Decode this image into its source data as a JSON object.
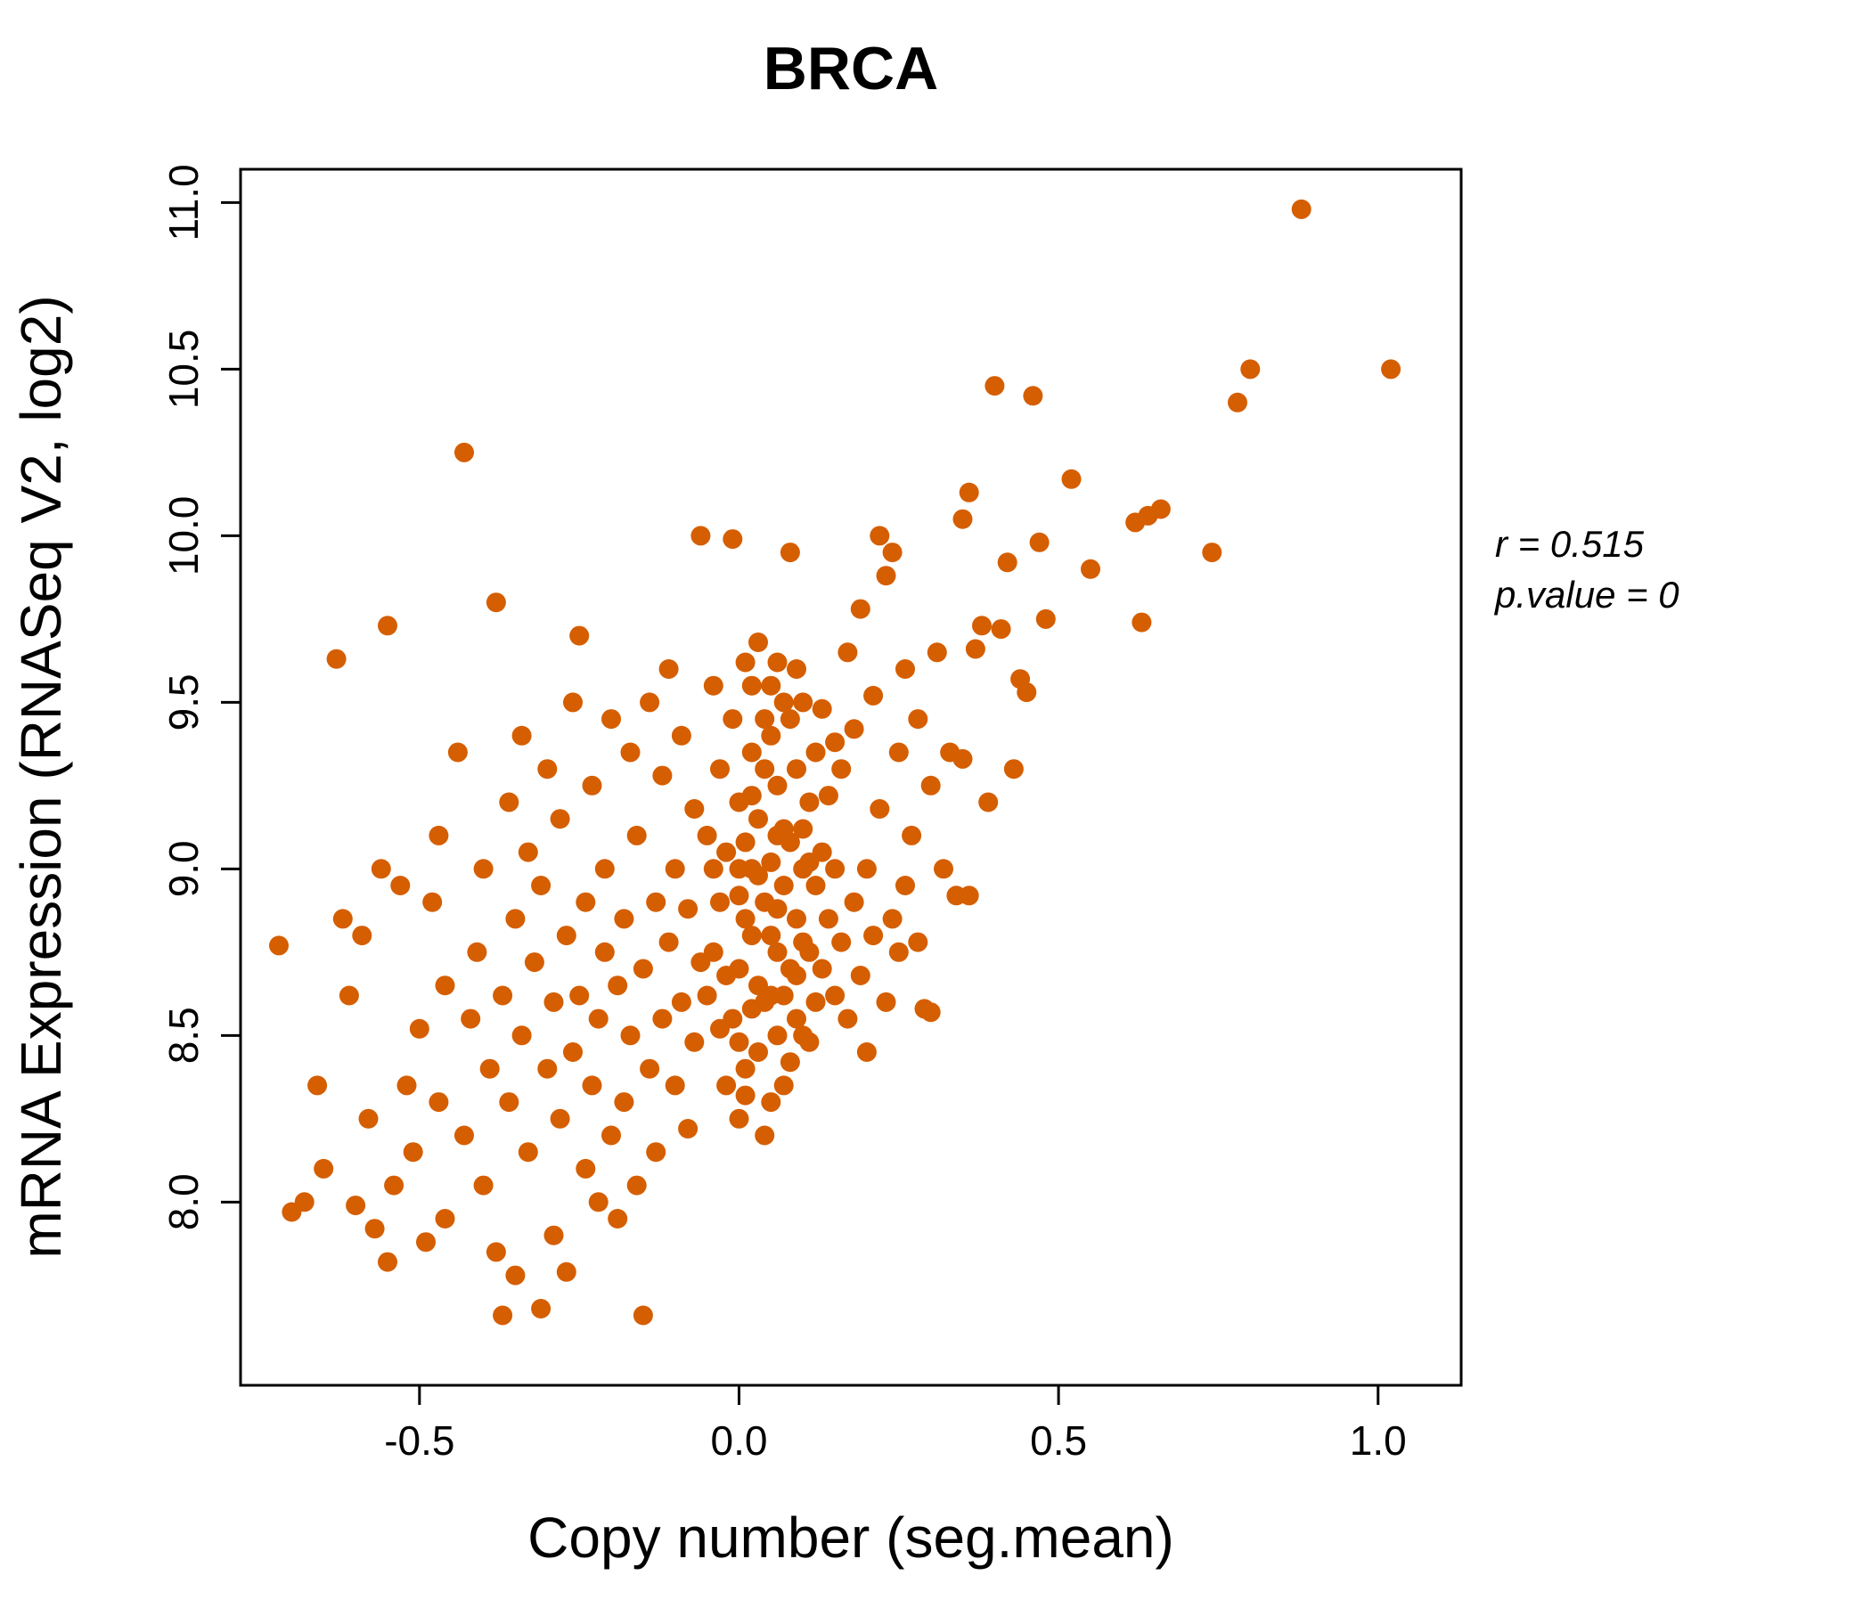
{
  "chart_data": {
    "type": "scatter",
    "title": "BRCA",
    "xlabel": "Copy number (seg.mean)",
    "ylabel": "mRNA Expression (RNASeq V2, log2)",
    "annotations": [
      "r = 0.515",
      "p.value = 0"
    ],
    "title_color": "#E06A00",
    "point_color": "#D55E00",
    "xlim": [
      -0.78,
      1.13
    ],
    "ylim": [
      7.45,
      11.1
    ],
    "x_ticks": {
      "values": [
        -0.5,
        0.0,
        0.5,
        1.0
      ],
      "labels": [
        "-0.5",
        "0.0",
        "0.5",
        "1.0"
      ]
    },
    "y_ticks": {
      "values": [
        8.0,
        8.5,
        9.0,
        9.5,
        10.0,
        10.5,
        11.0
      ],
      "labels": [
        "8.0",
        "8.5",
        "9.0",
        "9.5",
        "10.0",
        "10.5",
        "11.0"
      ]
    },
    "grid": false,
    "points": [
      [
        -0.72,
        8.77
      ],
      [
        -0.7,
        7.97
      ],
      [
        -0.68,
        8.0
      ],
      [
        -0.66,
        8.35
      ],
      [
        -0.65,
        8.1
      ],
      [
        -0.63,
        9.63
      ],
      [
        -0.62,
        8.85
      ],
      [
        -0.61,
        8.62
      ],
      [
        -0.6,
        7.99
      ],
      [
        -0.59,
        8.8
      ],
      [
        -0.58,
        8.25
      ],
      [
        -0.57,
        7.92
      ],
      [
        -0.56,
        9.0
      ],
      [
        -0.55,
        9.73
      ],
      [
        -0.55,
        7.82
      ],
      [
        -0.54,
        8.05
      ],
      [
        -0.53,
        8.95
      ],
      [
        -0.52,
        8.35
      ],
      [
        -0.51,
        8.15
      ],
      [
        -0.5,
        8.52
      ],
      [
        -0.49,
        7.88
      ],
      [
        -0.48,
        8.9
      ],
      [
        -0.47,
        9.1
      ],
      [
        -0.47,
        8.3
      ],
      [
        -0.46,
        8.65
      ],
      [
        -0.46,
        7.95
      ],
      [
        -0.44,
        9.35
      ],
      [
        -0.43,
        10.25
      ],
      [
        -0.43,
        8.2
      ],
      [
        -0.42,
        8.55
      ],
      [
        -0.41,
        8.75
      ],
      [
        -0.4,
        9.0
      ],
      [
        -0.4,
        8.05
      ],
      [
        -0.39,
        8.4
      ],
      [
        -0.38,
        9.8
      ],
      [
        -0.38,
        7.85
      ],
      [
        -0.37,
        7.66
      ],
      [
        -0.37,
        8.62
      ],
      [
        -0.36,
        9.2
      ],
      [
        -0.36,
        8.3
      ],
      [
        -0.35,
        8.85
      ],
      [
        -0.35,
        7.78
      ],
      [
        -0.34,
        9.4
      ],
      [
        -0.34,
        8.5
      ],
      [
        -0.33,
        8.15
      ],
      [
        -0.33,
        9.05
      ],
      [
        -0.32,
        8.72
      ],
      [
        -0.31,
        7.68
      ],
      [
        -0.31,
        8.95
      ],
      [
        -0.3,
        9.3
      ],
      [
        -0.3,
        8.4
      ],
      [
        -0.29,
        8.6
      ],
      [
        -0.29,
        7.9
      ],
      [
        -0.28,
        9.15
      ],
      [
        -0.28,
        8.25
      ],
      [
        -0.27,
        8.8
      ],
      [
        -0.27,
        7.79
      ],
      [
        -0.26,
        9.5
      ],
      [
        -0.26,
        8.45
      ],
      [
        -0.25,
        9.7
      ],
      [
        -0.25,
        8.62
      ],
      [
        -0.24,
        8.1
      ],
      [
        -0.24,
        8.9
      ],
      [
        -0.23,
        8.35
      ],
      [
        -0.23,
        9.25
      ],
      [
        -0.22,
        8.55
      ],
      [
        -0.22,
        8.0
      ],
      [
        -0.21,
        8.75
      ],
      [
        -0.21,
        9.0
      ],
      [
        -0.2,
        8.2
      ],
      [
        -0.2,
        9.45
      ],
      [
        -0.19,
        8.65
      ],
      [
        -0.19,
        7.95
      ],
      [
        -0.18,
        8.85
      ],
      [
        -0.18,
        8.3
      ],
      [
        -0.17,
        9.35
      ],
      [
        -0.17,
        8.5
      ],
      [
        -0.16,
        8.05
      ],
      [
        -0.16,
        9.1
      ],
      [
        -0.15,
        7.66
      ],
      [
        -0.15,
        8.7
      ],
      [
        -0.14,
        8.4
      ],
      [
        -0.14,
        9.5
      ],
      [
        -0.13,
        8.9
      ],
      [
        -0.13,
        8.15
      ],
      [
        -0.12,
        9.28
      ],
      [
        -0.12,
        8.55
      ],
      [
        -0.11,
        8.78
      ],
      [
        -0.11,
        9.6
      ],
      [
        -0.1,
        8.35
      ],
      [
        -0.1,
        9.0
      ],
      [
        -0.09,
        8.6
      ],
      [
        -0.09,
        9.4
      ],
      [
        -0.08,
        8.22
      ],
      [
        -0.08,
        8.88
      ],
      [
        -0.07,
        9.18
      ],
      [
        -0.07,
        8.48
      ],
      [
        -0.06,
        10.0
      ],
      [
        -0.06,
        8.72
      ],
      [
        -0.05,
        8.62
      ],
      [
        -0.05,
        9.1
      ],
      [
        -0.04,
        8.75
      ],
      [
        -0.04,
        9.55
      ],
      [
        -0.03,
        8.9
      ],
      [
        -0.03,
        9.3
      ],
      [
        -0.02,
        8.35
      ],
      [
        -0.02,
        9.05
      ],
      [
        -0.01,
        8.55
      ],
      [
        -0.01,
        9.45
      ],
      [
        -0.01,
        9.99
      ],
      [
        0.0,
        8.7
      ],
      [
        0.0,
        9.2
      ],
      [
        0.0,
        8.25
      ],
      [
        0.0,
        9.0
      ],
      [
        0.01,
        8.85
      ],
      [
        0.01,
        8.4
      ],
      [
        0.01,
        9.62
      ],
      [
        0.02,
        9.0
      ],
      [
        0.02,
        9.35
      ],
      [
        0.02,
        8.8
      ],
      [
        0.02,
        9.55
      ],
      [
        0.03,
        8.45
      ],
      [
        0.03,
        9.15
      ],
      [
        0.03,
        9.68
      ],
      [
        0.03,
        8.65
      ],
      [
        0.04,
        8.6
      ],
      [
        0.04,
        9.3
      ],
      [
        0.04,
        8.9
      ],
      [
        0.04,
        8.2
      ],
      [
        0.05,
        8.8
      ],
      [
        0.05,
        9.4
      ],
      [
        0.05,
        8.3
      ],
      [
        0.05,
        9.55
      ],
      [
        0.06,
        9.1
      ],
      [
        0.06,
        8.5
      ],
      [
        0.06,
        9.25
      ],
      [
        0.06,
        8.75
      ],
      [
        0.07,
        8.95
      ],
      [
        0.07,
        9.5
      ],
      [
        0.07,
        8.35
      ],
      [
        0.07,
        8.62
      ],
      [
        0.08,
        8.7
      ],
      [
        0.08,
        9.45
      ],
      [
        0.08,
        9.95
      ],
      [
        0.08,
        8.42
      ],
      [
        0.09,
        8.85
      ],
      [
        0.09,
        9.3
      ],
      [
        0.09,
        9.6
      ],
      [
        0.09,
        8.55
      ],
      [
        0.1,
        9.0
      ],
      [
        0.1,
        8.5
      ],
      [
        0.1,
        9.5
      ],
      [
        0.1,
        8.78
      ],
      [
        0.11,
        9.2
      ],
      [
        0.11,
        8.75
      ],
      [
        0.11,
        8.48
      ],
      [
        0.12,
        8.6
      ],
      [
        0.12,
        9.35
      ],
      [
        0.12,
        8.95
      ],
      [
        0.13,
        9.05
      ],
      [
        0.13,
        8.7
      ],
      [
        0.13,
        9.48
      ],
      [
        0.14,
        8.85
      ],
      [
        0.14,
        9.22
      ],
      [
        0.15,
        8.62
      ],
      [
        0.15,
        9.38
      ],
      [
        0.15,
        9.0
      ],
      [
        0.0,
        8.48
      ],
      [
        0.01,
        9.08
      ],
      [
        0.02,
        8.58
      ],
      [
        0.03,
        8.98
      ],
      [
        0.04,
        9.45
      ],
      [
        0.05,
        8.62
      ],
      [
        0.06,
        8.88
      ],
      [
        -0.02,
        8.68
      ],
      [
        -0.03,
        8.52
      ],
      [
        -0.04,
        9.0
      ],
      [
        0.05,
        9.02
      ],
      [
        0.07,
        9.12
      ],
      [
        0.08,
        9.08
      ],
      [
        0.09,
        8.68
      ],
      [
        0.1,
        9.12
      ],
      [
        0.11,
        9.02
      ],
      [
        0.0,
        8.92
      ],
      [
        0.01,
        8.32
      ],
      [
        0.02,
        9.22
      ],
      [
        0.06,
        9.62
      ],
      [
        0.16,
        8.78
      ],
      [
        0.16,
        9.3
      ],
      [
        0.17,
        8.55
      ],
      [
        0.17,
        9.65
      ],
      [
        0.18,
        8.9
      ],
      [
        0.18,
        9.42
      ],
      [
        0.19,
        8.68
      ],
      [
        0.19,
        9.78
      ],
      [
        0.2,
        9.0
      ],
      [
        0.2,
        8.45
      ],
      [
        0.21,
        9.52
      ],
      [
        0.21,
        8.8
      ],
      [
        0.22,
        10.0
      ],
      [
        0.22,
        9.18
      ],
      [
        0.23,
        8.6
      ],
      [
        0.23,
        9.88
      ],
      [
        0.24,
        9.95
      ],
      [
        0.24,
        8.85
      ],
      [
        0.25,
        9.35
      ],
      [
        0.25,
        8.75
      ],
      [
        0.26,
        9.6
      ],
      [
        0.26,
        8.95
      ],
      [
        0.27,
        9.1
      ],
      [
        0.28,
        8.78
      ],
      [
        0.28,
        9.45
      ],
      [
        0.29,
        8.58
      ],
      [
        0.3,
        9.25
      ],
      [
        0.3,
        8.57
      ],
      [
        0.31,
        9.65
      ],
      [
        0.32,
        9.0
      ],
      [
        0.33,
        9.35
      ],
      [
        0.34,
        8.92
      ],
      [
        0.35,
        10.05
      ],
      [
        0.35,
        9.33
      ],
      [
        0.36,
        10.13
      ],
      [
        0.36,
        8.92
      ],
      [
        0.37,
        9.66
      ],
      [
        0.38,
        9.73
      ],
      [
        0.39,
        9.2
      ],
      [
        0.4,
        10.45
      ],
      [
        0.41,
        9.72
      ],
      [
        0.42,
        9.92
      ],
      [
        0.43,
        9.3
      ],
      [
        0.44,
        9.57
      ],
      [
        0.45,
        9.53
      ],
      [
        0.46,
        10.42
      ],
      [
        0.47,
        9.98
      ],
      [
        0.48,
        9.75
      ],
      [
        0.52,
        10.17
      ],
      [
        0.55,
        9.9
      ],
      [
        0.62,
        10.04
      ],
      [
        0.64,
        10.06
      ],
      [
        0.66,
        10.08
      ],
      [
        0.63,
        9.74
      ],
      [
        0.74,
        9.95
      ],
      [
        0.78,
        10.4
      ],
      [
        0.8,
        10.5
      ],
      [
        0.88,
        10.98
      ],
      [
        1.02,
        10.5
      ]
    ]
  }
}
